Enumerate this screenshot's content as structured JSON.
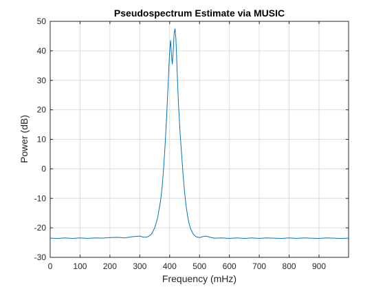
{
  "chart_data": {
    "type": "line",
    "title": "Pseudospectrum Estimate via MUSIC",
    "xlabel": "Frequency (mHz)",
    "ylabel": "Power (dB)",
    "xlim": [
      0,
      999
    ],
    "ylim": [
      -30,
      50
    ],
    "xticks": [
      0,
      100,
      200,
      300,
      400,
      500,
      600,
      700,
      800,
      900
    ],
    "yticks": [
      -30,
      -20,
      -10,
      0,
      10,
      20,
      30,
      40,
      50
    ],
    "grid": true,
    "line_color": "#0072BD",
    "series": [
      {
        "x": [
          0,
          25,
          50,
          75,
          100,
          125,
          150,
          175,
          200,
          225,
          250,
          275,
          300,
          310,
          320,
          330,
          340,
          350,
          360,
          370,
          375,
          380,
          385,
          390,
          395,
          400,
          403,
          406,
          409,
          412,
          415,
          418,
          421,
          424,
          427,
          430,
          435,
          440,
          445,
          450,
          455,
          460,
          465,
          470,
          480,
          490,
          500,
          510,
          520,
          530,
          540,
          550,
          575,
          600,
          625,
          650,
          675,
          700,
          725,
          750,
          775,
          800,
          825,
          850,
          875,
          900,
          925,
          950,
          975,
          999
        ],
        "y": [
          -23.5,
          -23.6,
          -23.4,
          -23.6,
          -23.4,
          -23.6,
          -23.4,
          -23.5,
          -23.3,
          -23.2,
          -23.4,
          -23.0,
          -22.8,
          -23.1,
          -23.2,
          -22.9,
          -22.0,
          -20.0,
          -16.5,
          -10.5,
          -6.0,
          0.5,
          8.5,
          18.0,
          29.0,
          40.0,
          43.5,
          38.5,
          35.5,
          40.0,
          46.0,
          47.5,
          44.0,
          36.0,
          28.0,
          21.0,
          12.0,
          5.0,
          -2.0,
          -8.0,
          -12.5,
          -16.0,
          -18.5,
          -20.3,
          -22.3,
          -23.1,
          -23.3,
          -23.0,
          -22.8,
          -23.0,
          -23.3,
          -23.5,
          -23.4,
          -23.6,
          -23.4,
          -23.6,
          -23.4,
          -23.6,
          -23.4,
          -23.5,
          -23.6,
          -23.4,
          -23.6,
          -23.4,
          -23.5,
          -23.6,
          -23.4,
          -23.5,
          -23.6,
          -23.5
        ]
      }
    ]
  }
}
